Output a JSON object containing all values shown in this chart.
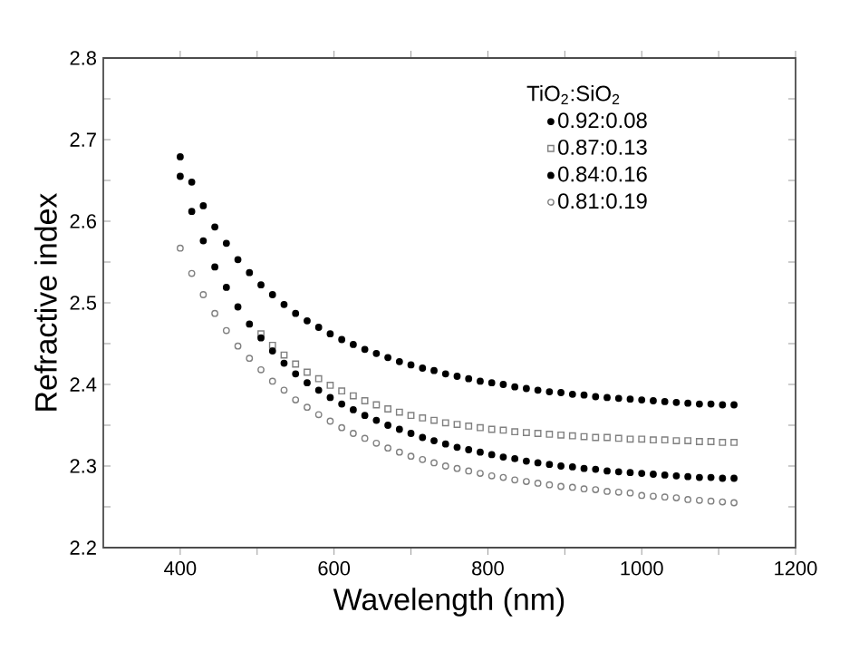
{
  "chart_data": {
    "type": "scatter",
    "xlabel": "Wavelength (nm)",
    "ylabel": "Refractive index",
    "legend_title": "TiO$_{2}$:SiO$_{2}$",
    "x": [
      400,
      415,
      430,
      445,
      460,
      475,
      490,
      505,
      520,
      535,
      550,
      565,
      580,
      595,
      610,
      625,
      640,
      655,
      670,
      685,
      700,
      715,
      730,
      745,
      760,
      775,
      790,
      805,
      820,
      835,
      850,
      865,
      880,
      895,
      910,
      925,
      940,
      955,
      970,
      985,
      1000,
      1015,
      1030,
      1045,
      1060,
      1075,
      1090,
      1105,
      1120
    ],
    "series": [
      {
        "name": "0.92:0.08",
        "color": "#000000",
        "marker": "circle",
        "values": [
          2.679,
          2.648,
          2.619,
          2.593,
          2.573,
          2.553,
          2.537,
          2.522,
          2.51,
          2.498,
          2.487,
          2.478,
          2.47,
          2.462,
          2.455,
          2.449,
          2.443,
          2.438,
          2.433,
          2.428,
          2.424,
          2.42,
          2.417,
          2.413,
          2.41,
          2.407,
          2.404,
          2.402,
          2.4,
          2.397,
          2.395,
          2.393,
          2.391,
          2.39,
          2.388,
          2.387,
          2.385,
          2.384,
          2.383,
          2.382,
          2.381,
          2.38,
          2.379,
          2.378,
          2.377,
          2.376,
          2.376,
          2.375,
          2.375
        ]
      },
      {
        "name": "0.87:0.13",
        "color": "#808080",
        "marker": "square",
        "values": [
          null,
          null,
          null,
          null,
          null,
          null,
          null,
          2.462,
          2.448,
          2.436,
          2.425,
          2.415,
          2.407,
          2.399,
          2.392,
          2.386,
          2.38,
          2.375,
          2.37,
          2.366,
          2.362,
          2.359,
          2.356,
          2.353,
          2.351,
          2.349,
          2.347,
          2.345,
          2.344,
          2.342,
          2.341,
          2.34,
          2.339,
          2.338,
          2.337,
          2.336,
          2.335,
          2.335,
          2.334,
          2.333,
          2.333,
          2.332,
          2.332,
          2.331,
          2.331,
          2.33,
          2.33,
          2.329,
          2.329
        ]
      },
      {
        "name": "0.84:0.16",
        "color": "#000000",
        "marker": "circle",
        "values": [
          2.655,
          2.612,
          2.576,
          2.544,
          2.519,
          2.495,
          2.474,
          2.457,
          2.441,
          2.426,
          2.413,
          2.402,
          2.393,
          2.384,
          2.376,
          2.369,
          2.362,
          2.356,
          2.35,
          2.345,
          2.34,
          2.335,
          2.331,
          2.327,
          2.323,
          2.32,
          2.317,
          2.314,
          2.311,
          2.309,
          2.306,
          2.304,
          2.302,
          2.3,
          2.299,
          2.297,
          2.296,
          2.294,
          2.293,
          2.292,
          2.291,
          2.29,
          2.289,
          2.288,
          2.287,
          2.286,
          2.286,
          2.285,
          2.285
        ]
      },
      {
        "name": "0.81:0.19",
        "color": "#808080",
        "marker": "circle",
        "values": [
          2.567,
          2.536,
          2.51,
          2.487,
          2.466,
          2.447,
          2.432,
          2.418,
          2.404,
          2.393,
          2.381,
          2.372,
          2.363,
          2.355,
          2.347,
          2.34,
          2.334,
          2.328,
          2.322,
          2.317,
          2.312,
          2.308,
          2.304,
          2.3,
          2.297,
          2.294,
          2.291,
          2.288,
          2.286,
          2.283,
          2.281,
          2.279,
          2.277,
          2.275,
          2.274,
          2.272,
          2.271,
          2.269,
          2.268,
          2.267,
          2.264,
          2.263,
          2.262,
          2.261,
          2.259,
          2.258,
          2.257,
          2.256,
          2.255
        ]
      }
    ],
    "xlim": [
      300,
      1200
    ],
    "ylim": [
      2.2,
      2.8
    ],
    "xticks": [
      400,
      {
        "value": 500,
        "label": null
      },
      600,
      {
        "value": 700,
        "label": null
      },
      800,
      {
        "value": 900,
        "label": null
      },
      1000,
      {
        "value": 1100,
        "label": null
      },
      1200
    ],
    "yticks": [
      2.2,
      {
        "value": 2.25,
        "label": null
      },
      2.3,
      {
        "value": 2.35,
        "label": null
      },
      2.4,
      {
        "value": 2.45,
        "label": null
      },
      2.5,
      {
        "value": 2.55,
        "label": null
      },
      2.6,
      {
        "value": 2.65,
        "label": null
      },
      2.7,
      {
        "value": 2.75,
        "label": null
      },
      2.8
    ],
    "grid": false,
    "legend": "top right"
  }
}
